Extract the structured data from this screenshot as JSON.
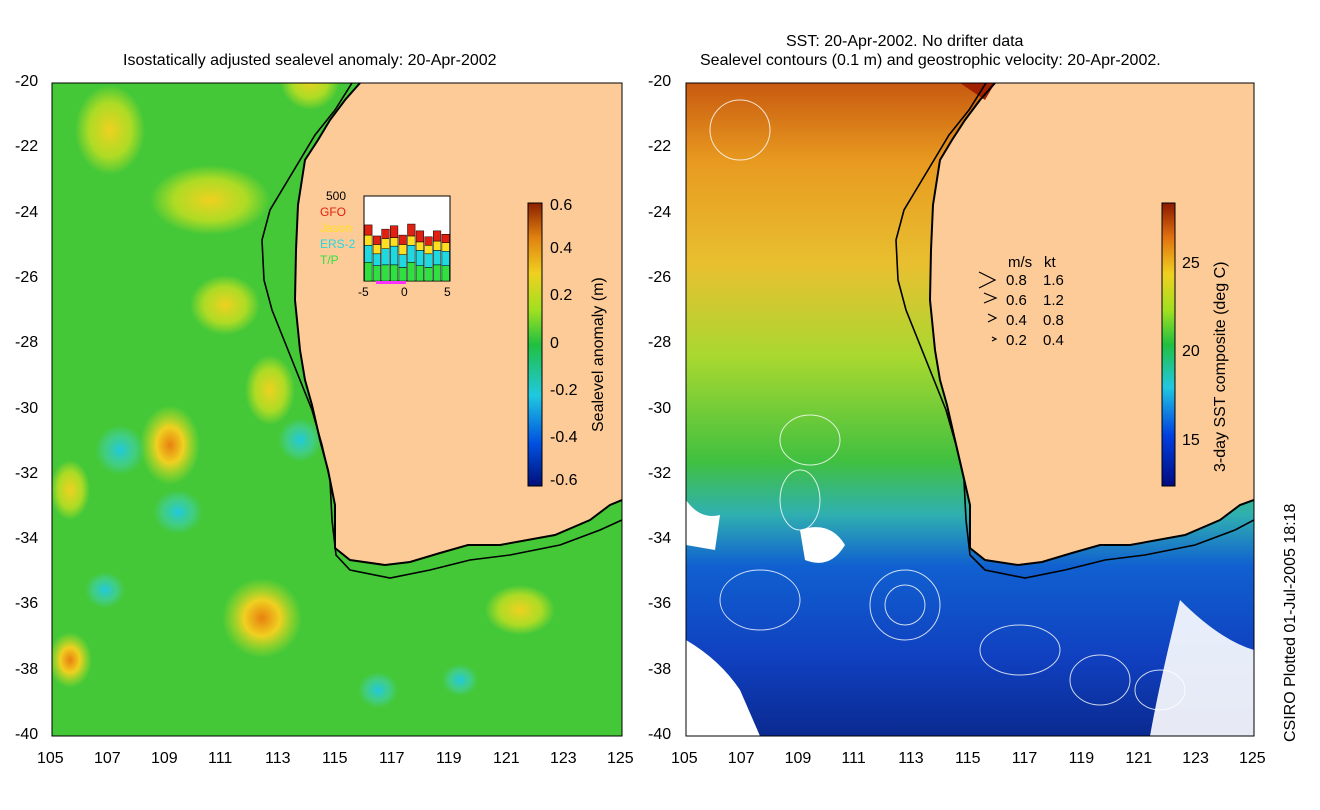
{
  "left_panel": {
    "title": "Isostatically adjusted sealevel anomaly: 20-Apr-2002",
    "colorbar": {
      "label": "Sealevel anomaly (m)",
      "ticks": [
        "0.6",
        "0.4",
        "0.2",
        "0",
        "-0.2",
        "-0.4",
        "-0.6"
      ]
    },
    "inset": {
      "ymax_label": "500",
      "legend": [
        "GFO",
        "Jason",
        "ERS-2",
        "T/P"
      ],
      "legend_colors": [
        "#e02010",
        "#ffe020",
        "#20d8e0",
        "#30e040"
      ],
      "xticks": [
        "-5",
        "0",
        "5"
      ],
      "bars": [
        {
          "gfo": 60,
          "jason": 60,
          "ers2": 100,
          "tp": 110
        },
        {
          "gfo": 50,
          "jason": 55,
          "ers2": 70,
          "tp": 90
        },
        {
          "gfo": 55,
          "jason": 60,
          "ers2": 95,
          "tp": 95
        },
        {
          "gfo": 70,
          "jason": 50,
          "ers2": 110,
          "tp": 95
        },
        {
          "gfo": 55,
          "jason": 60,
          "ers2": 75,
          "tp": 80
        },
        {
          "gfo": 70,
          "jason": 55,
          "ers2": 100,
          "tp": 110
        },
        {
          "gfo": 65,
          "jason": 50,
          "ers2": 90,
          "tp": 90
        },
        {
          "gfo": 50,
          "jason": 50,
          "ers2": 80,
          "tp": 80
        },
        {
          "gfo": 60,
          "jason": 55,
          "ers2": 85,
          "tp": 95
        },
        {
          "gfo": 50,
          "jason": 50,
          "ers2": 85,
          "tp": 90
        }
      ]
    }
  },
  "right_panel": {
    "title_line1": "SST: 20-Apr-2002. No drifter data",
    "title_line2": "Sealevel contours (0.1 m) and geostrophic velocity: 20-Apr-2002.",
    "colorbar": {
      "label": "3-day SST composite (deg C)",
      "ticks": [
        "25",
        "20",
        "15"
      ]
    },
    "speed_legend": {
      "header_ms": "m/s",
      "header_kt": "kt",
      "rows": [
        {
          "ms": "0.8",
          "kt": "1.6"
        },
        {
          "ms": "0.6",
          "kt": "1.2"
        },
        {
          "ms": "0.4",
          "kt": "0.8"
        },
        {
          "ms": "0.2",
          "kt": "0.4"
        }
      ]
    }
  },
  "axes": {
    "lat_labels": [
      "-20",
      "-22",
      "-24",
      "-26",
      "-28",
      "-30",
      "-32",
      "-34",
      "-36",
      "-38",
      "-40"
    ],
    "lon_labels": [
      "105",
      "107",
      "109",
      "111",
      "113",
      "115",
      "117",
      "119",
      "121",
      "123",
      "125"
    ]
  },
  "credit": "CSIRO Plotted 01-Jul-2005 18:18"
}
